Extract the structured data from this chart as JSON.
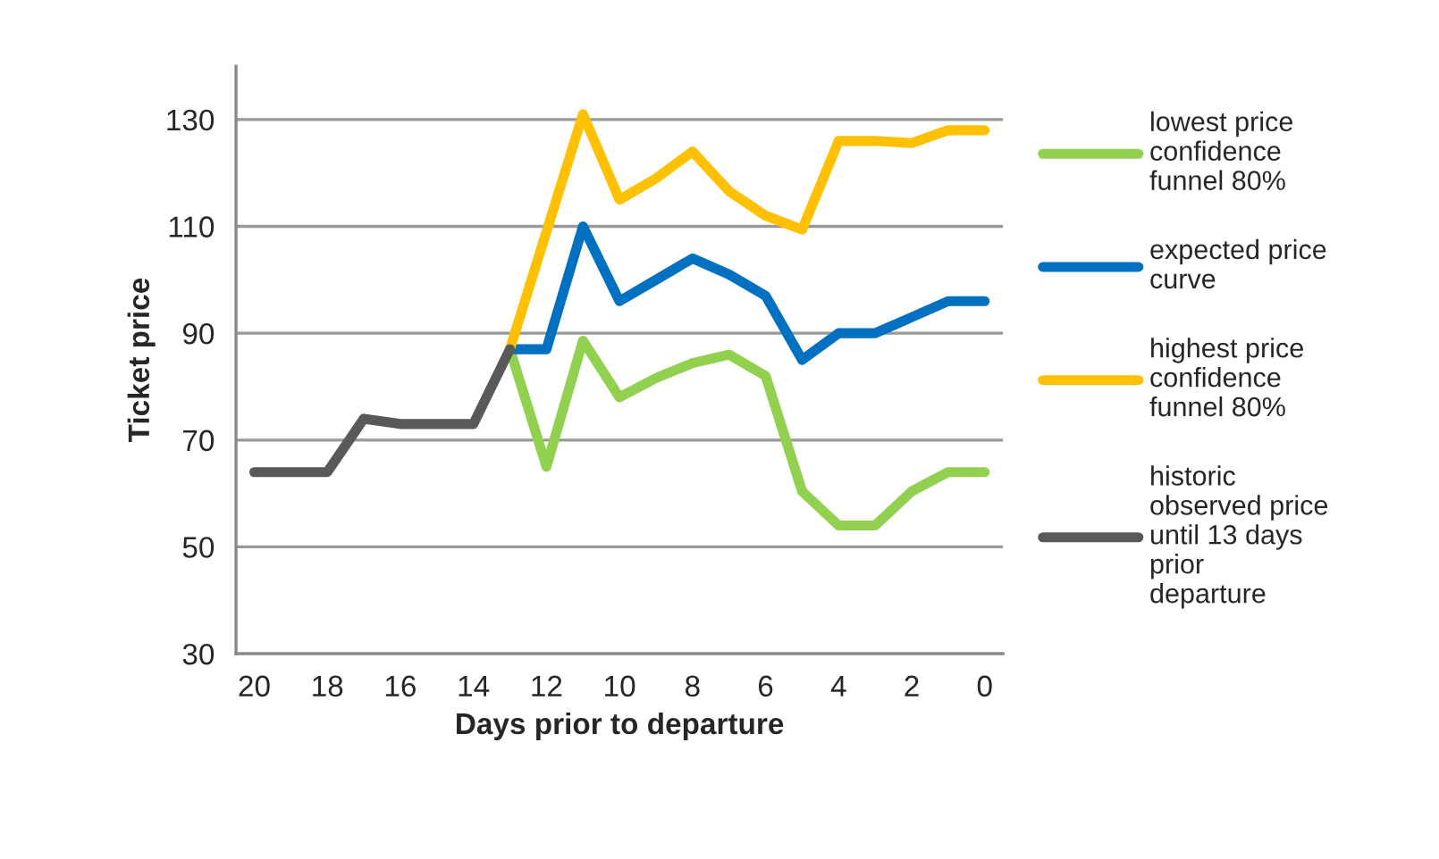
{
  "chart_data": {
    "type": "line",
    "xlabel": "Days prior to departure",
    "ylabel": "Ticket price",
    "x": [
      20,
      19,
      18,
      17,
      16,
      15,
      14,
      13,
      12,
      11,
      10,
      9,
      8,
      7,
      6,
      5,
      4,
      3,
      2,
      1,
      0
    ],
    "xlim": [
      20.5,
      -0.5
    ],
    "xticks": [
      20,
      18,
      16,
      14,
      12,
      10,
      8,
      6,
      4,
      2,
      0
    ],
    "ylim": [
      30,
      140
    ],
    "yticks": [
      30,
      50,
      70,
      90,
      110,
      130
    ],
    "grid": "y",
    "legend": "right",
    "line_style": "solid",
    "marker": "none",
    "series": [
      {
        "name": "lowest price\nconfidence\nfunnel 80%",
        "color": "#92d050",
        "values": [
          null,
          null,
          null,
          null,
          null,
          null,
          null,
          87,
          65,
          88.6,
          78,
          81.6,
          84.4,
          86,
          82,
          60.4,
          54,
          54,
          60.4,
          64,
          64
        ]
      },
      {
        "name": "expected price\ncurve",
        "color": "#0070c0",
        "values": [
          null,
          null,
          null,
          null,
          null,
          null,
          null,
          87,
          87,
          110,
          96,
          100,
          104,
          101,
          97,
          85,
          90,
          90,
          93,
          96,
          96
        ]
      },
      {
        "name": "highest price\nconfidence\nfunnel 80%",
        "color": "#ffc000",
        "values": [
          null,
          null,
          null,
          null,
          null,
          null,
          null,
          87,
          109,
          131,
          115,
          119,
          124,
          116.6,
          112,
          109.4,
          126,
          126,
          125.6,
          128,
          128
        ]
      },
      {
        "name": "historic\nobserved price\nuntil 13 days\nprior\ndeparture",
        "color": "#595959",
        "values": [
          64,
          64,
          64,
          74,
          73,
          73,
          73,
          87,
          null,
          null,
          null,
          null,
          null,
          null,
          null,
          null,
          null,
          null,
          null,
          null,
          null
        ]
      }
    ]
  }
}
